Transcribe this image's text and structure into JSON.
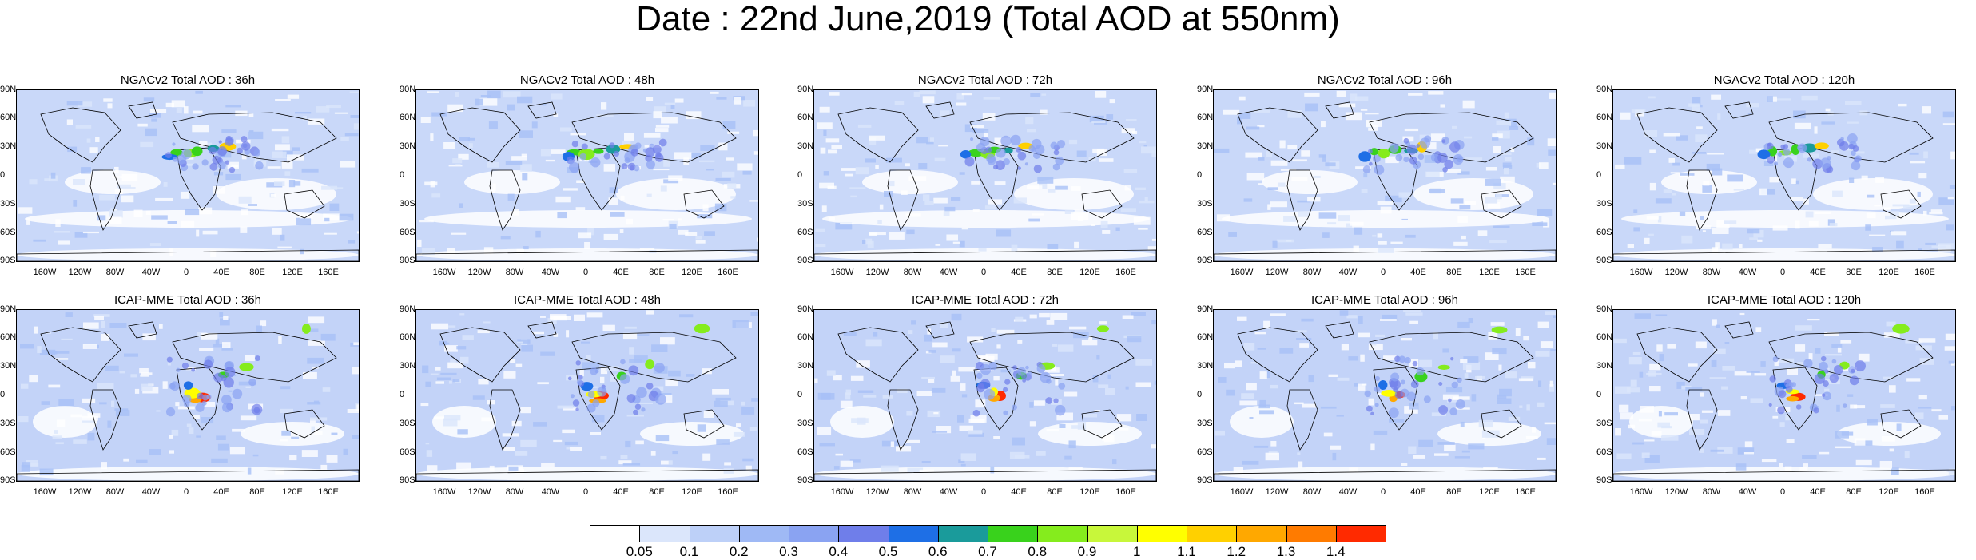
{
  "title": "Date : 22nd June,2019 (Total AOD at 550nm)",
  "panels": [
    {
      "title": "NGACv2 Total AOD : 36h",
      "row": 0,
      "col": 0
    },
    {
      "title": "NGACv2 Total AOD : 48h",
      "row": 0,
      "col": 1
    },
    {
      "title": "NGACv2 Total AOD : 72h",
      "row": 0,
      "col": 2
    },
    {
      "title": "NGACv2 Total AOD : 96h",
      "row": 0,
      "col": 3
    },
    {
      "title": "NGACv2 Total AOD : 120h",
      "row": 0,
      "col": 4
    },
    {
      "title": "ICAP-MME Total AOD : 36h",
      "row": 1,
      "col": 0
    },
    {
      "title": "ICAP-MME Total AOD : 48h",
      "row": 1,
      "col": 1
    },
    {
      "title": "ICAP-MME Total AOD : 72h",
      "row": 1,
      "col": 2
    },
    {
      "title": "ICAP-MME Total AOD : 96h",
      "row": 1,
      "col": 3
    },
    {
      "title": "ICAP-MME Total AOD : 120h",
      "row": 1,
      "col": 4
    }
  ],
  "lat_labels": [
    "90N",
    "60N",
    "30N",
    "0",
    "30S",
    "60S",
    "90S"
  ],
  "lon_labels": [
    "160W",
    "120W",
    "80W",
    "40W",
    "0",
    "40E",
    "80E",
    "120E",
    "160E"
  ],
  "colorbar": {
    "labels": [
      "0.05",
      "0.1",
      "0.2",
      "0.3",
      "0.4",
      "0.5",
      "0.6",
      "0.7",
      "0.8",
      "0.9",
      "1",
      "1.1",
      "1.2",
      "1.3",
      "1.4"
    ],
    "colors": [
      "#ffffff",
      "#dbe6fb",
      "#bdd0f8",
      "#9fb9f5",
      "#8aa3f2",
      "#6f7eea",
      "#1e6fe6",
      "#1a9b9b",
      "#39d21c",
      "#85ec1d",
      "#c8f73a",
      "#ffff00",
      "#ffd000",
      "#ffa800",
      "#ff7b00",
      "#ff2a00"
    ]
  }
}
